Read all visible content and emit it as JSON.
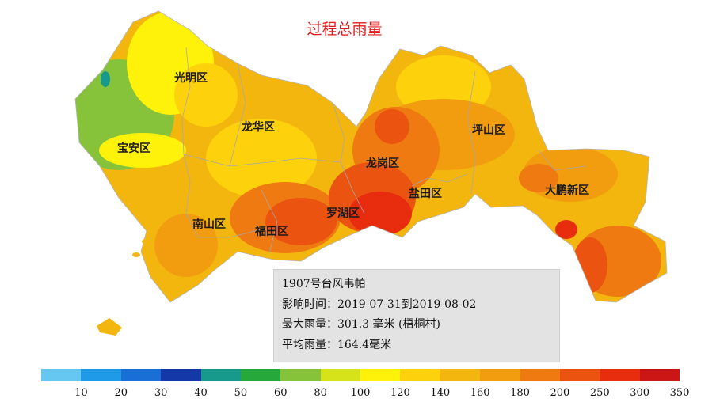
{
  "title": "过程总雨量",
  "districts": [
    {
      "name": "光明区"
    },
    {
      "name": "宝安区"
    },
    {
      "name": "龙华区"
    },
    {
      "name": "龙岗区"
    },
    {
      "name": "坪山区"
    },
    {
      "name": "大鹏新区"
    },
    {
      "name": "盐田区"
    },
    {
      "name": "罗湖区"
    },
    {
      "name": "南山区"
    },
    {
      "name": "福田区"
    }
  ],
  "info": {
    "line1": "1907号台风韦帕",
    "line2": "影响时间：2019-07-31到2019-08-02",
    "line3": "最大雨量：301.3 毫米 (梧桐村)",
    "line4": "平均雨量：164.4毫米"
  },
  "legend": {
    "colors": [
      "#66c8f0",
      "#1f9ae6",
      "#1a6fd6",
      "#1438a8",
      "#17998c",
      "#26a83a",
      "#86c23a",
      "#d6e21a",
      "#fff20a",
      "#fdd20c",
      "#f3b60f",
      "#f29c0f",
      "#ee7a11",
      "#ea5410",
      "#e82c0e",
      "#cc1616"
    ],
    "ticks": [
      "10",
      "20",
      "30",
      "40",
      "50",
      "60",
      "80",
      "100",
      "120",
      "140",
      "160",
      "180",
      "200",
      "250",
      "300",
      "350"
    ]
  }
}
